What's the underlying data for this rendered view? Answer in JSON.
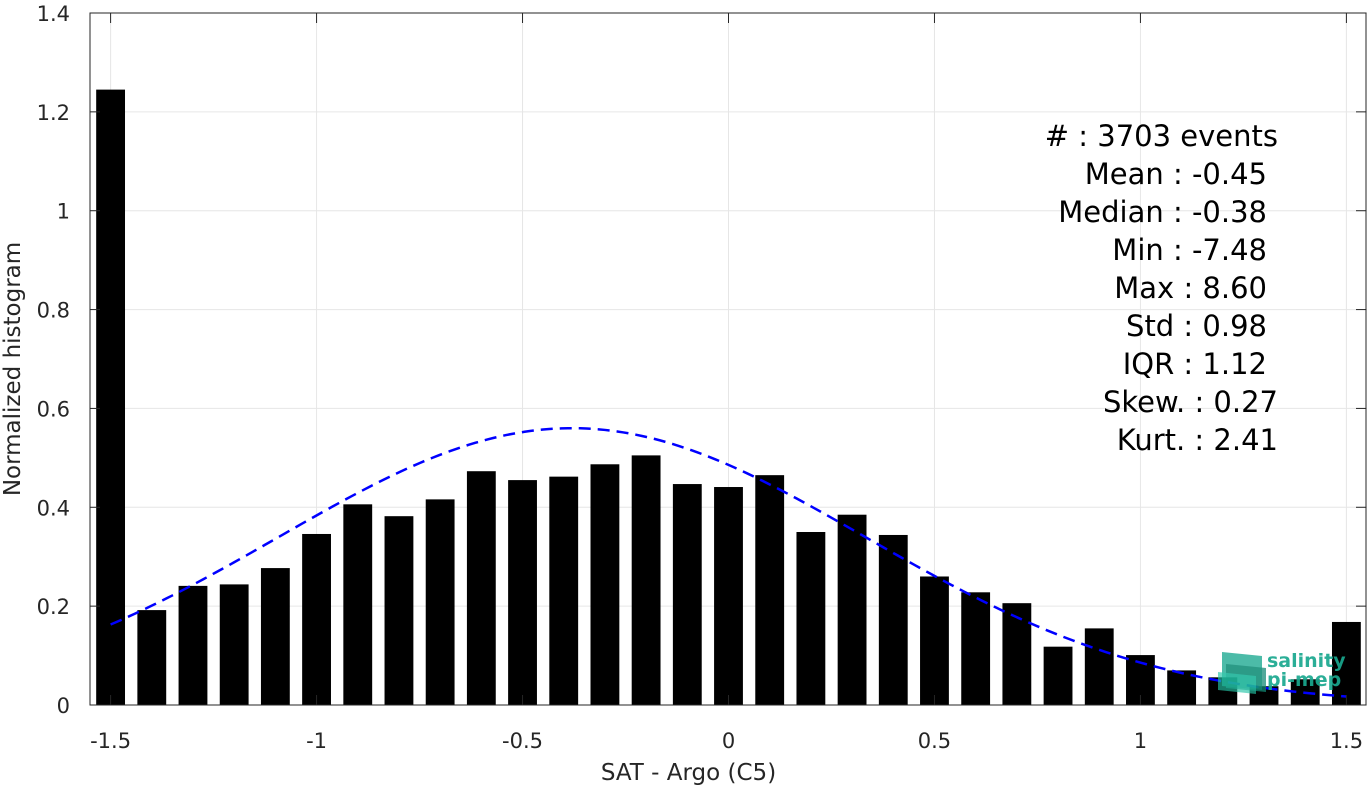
{
  "chart_data": {
    "type": "bar",
    "xlabel": "SAT - Argo (C5)",
    "ylabel": "Normalized histogram",
    "xlim": [
      -1.55,
      1.55
    ],
    "ylim": [
      0,
      1.4
    ],
    "grid": true,
    "x_ticks": [
      -1.5,
      -1,
      -0.5,
      0,
      0.5,
      1,
      1.5
    ],
    "x_tick_labels": [
      "-1.5",
      "-1",
      "-0.5",
      "0",
      "0.5",
      "1",
      "1.5"
    ],
    "y_ticks": [
      0,
      0.2,
      0.4,
      0.6,
      0.8,
      1,
      1.2,
      1.4
    ],
    "y_tick_labels": [
      "0",
      "0.2",
      "0.4",
      "0.6",
      "0.8",
      "1",
      "1.2",
      "1.4"
    ],
    "bar_color": "#000000",
    "bar_width": 0.07,
    "bars": {
      "x": [
        -1.5,
        -1.4,
        -1.3,
        -1.2,
        -1.1,
        -1.0,
        -0.9,
        -0.8,
        -0.7,
        -0.6,
        -0.5,
        -0.4,
        -0.3,
        -0.2,
        -0.1,
        0.0,
        0.1,
        0.2,
        0.3,
        0.4,
        0.5,
        0.6,
        0.7,
        0.8,
        0.9,
        1.0,
        1.1,
        1.2,
        1.3,
        1.4,
        1.5
      ],
      "values": [
        1.245,
        0.192,
        0.241,
        0.244,
        0.277,
        0.346,
        0.406,
        0.382,
        0.416,
        0.473,
        0.455,
        0.462,
        0.487,
        0.505,
        0.447,
        0.441,
        0.465,
        0.35,
        0.385,
        0.344,
        0.26,
        0.228,
        0.206,
        0.118,
        0.155,
        0.101,
        0.07,
        0.056,
        0.038,
        0.052,
        0.168
      ]
    },
    "fit_curve": {
      "style": "dashed",
      "color": "#0000ff",
      "mean": -0.38,
      "std": 0.7125,
      "peak": 0.56,
      "x_range": [
        -1.5,
        1.5
      ]
    },
    "stats": [
      {
        "label": "#  : 3703 events"
      },
      {
        "label": "Mean : -0.45"
      },
      {
        "label": "Median : -0.38"
      },
      {
        "label": "Min : -7.48"
      },
      {
        "label": "Max : 8.60"
      },
      {
        "label": "Std : 0.98"
      },
      {
        "label": "IQR : 1.12"
      },
      {
        "label": "Skew. : 0.27"
      },
      {
        "label": "Kurt. : 2.41"
      }
    ]
  },
  "logo": {
    "line1": "salinity",
    "line2": "pi-mep",
    "icon": "salinity-wave-icon",
    "color": "#1aa88f"
  }
}
